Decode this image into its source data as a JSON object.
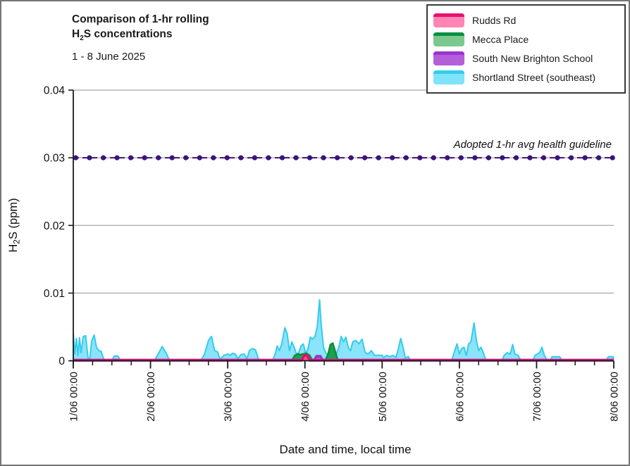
{
  "figure": {
    "title_line1": "Comparison of 1-hr rolling",
    "title_h": "H",
    "title_sub": "2",
    "title_rest": "S concentrations",
    "subtitle": "1 - 8 June 2025"
  },
  "legend": {
    "items": [
      {
        "label": "Rudds Rd",
        "fill": "#FF85B5",
        "line": "#E4126F"
      },
      {
        "label": "Mecca Place",
        "fill": "#7CC98F",
        "line": "#0A9140"
      },
      {
        "label": "South New Brighton School",
        "fill": "#B45FD9",
        "line": "#9B35CE"
      },
      {
        "label": "Shortland Street (southeast)",
        "fill": "#7FE3F9",
        "line": "#33CCEE"
      }
    ]
  },
  "chart_data": {
    "type": "area",
    "title": "Comparison of 1-hr rolling H2S concentrations, 1 - 8 June 2025",
    "xlabel": "Date and time, local time",
    "ylabel_h": "H",
    "ylabel_sub": "2",
    "ylabel_rest": "S (ppm)",
    "ylim": [
      0,
      0.04
    ],
    "xlim_days": [
      0,
      7
    ],
    "grid": "horizontal",
    "legend_position": "top-right",
    "yticks": [
      {
        "value": 0,
        "label": "0"
      },
      {
        "value": 0.01,
        "label": "0.01"
      },
      {
        "value": 0.02,
        "label": "0.02"
      },
      {
        "value": 0.03,
        "label": "0.03"
      },
      {
        "value": 0.04,
        "label": "0.04"
      }
    ],
    "xticks": [
      {
        "day": 0,
        "label": "1/06 00:00"
      },
      {
        "day": 1,
        "label": "2/06 00:00"
      },
      {
        "day": 2,
        "label": "3/06 00:00"
      },
      {
        "day": 3,
        "label": "4/06 00:00"
      },
      {
        "day": 4,
        "label": "5/06 00:00"
      },
      {
        "day": 5,
        "label": "6/06 00:00"
      },
      {
        "day": 6,
        "label": "7/06 00:00"
      },
      {
        "day": 7,
        "label": "8/06 00:00"
      }
    ],
    "minor_tick_interval_days": 0.25,
    "guideline": {
      "value": 0.03,
      "label": "Adopted 1-hr avg health guideline",
      "color": "#3A1578"
    },
    "series": [
      {
        "name": "Rudds Rd",
        "stroke": "#DE0F6F",
        "fill": "#F0519B",
        "width": 3.5,
        "points": [
          [
            0,
            5e-05
          ],
          [
            2.96,
            5e-05
          ],
          [
            2.99,
            0.0008
          ],
          [
            3.03,
            0.0008
          ],
          [
            3.06,
            5e-05
          ],
          [
            7,
            5e-05
          ]
        ]
      },
      {
        "name": "Mecca Place",
        "stroke": "#0E8C3C",
        "fill": "#1CA24E",
        "width": 2.5,
        "points": [
          [
            0,
            5e-05
          ],
          [
            2.83,
            5e-05
          ],
          [
            2.87,
            0.0008
          ],
          [
            2.91,
            0.001
          ],
          [
            2.94,
            0.0009
          ],
          [
            2.98,
            0.001
          ],
          [
            3.02,
            0.0011
          ],
          [
            3.06,
            0.0008
          ],
          [
            3.09,
            0.0002
          ],
          [
            3.12,
            0.0001
          ],
          [
            3.27,
            0.0002
          ],
          [
            3.3,
            0.001
          ],
          [
            3.33,
            0.0024
          ],
          [
            3.36,
            0.0026
          ],
          [
            3.39,
            0.0015
          ],
          [
            3.42,
            0.0003
          ],
          [
            3.45,
            5e-05
          ],
          [
            7,
            5e-05
          ]
        ]
      },
      {
        "name": "South New Brighton School",
        "stroke": "#9632C8",
        "fill": "#A64FD0",
        "width": 3,
        "points": [
          [
            0,
            0.00015
          ],
          [
            3.12,
            0.00015
          ],
          [
            3.15,
            0.0007
          ],
          [
            3.2,
            0.0007
          ],
          [
            3.23,
            0.00015
          ],
          [
            7,
            0.00015
          ]
        ]
      },
      {
        "name": "Shortland Street (southeast)",
        "stroke": "#33CCEE",
        "fill": "#8BE4FA",
        "width": 2,
        "points": [
          [
            0,
            0.004
          ],
          [
            0.02,
            0.001
          ],
          [
            0.04,
            0.0033
          ],
          [
            0.06,
            0.0008
          ],
          [
            0.08,
            0.0034
          ],
          [
            0.1,
            0.0012
          ],
          [
            0.13,
            0.0036
          ],
          [
            0.16,
            0.0037
          ],
          [
            0.19,
            0.0005
          ],
          [
            0.21,
            0
          ],
          [
            0.24,
            0.003
          ],
          [
            0.27,
            0.0038
          ],
          [
            0.3,
            0.002
          ],
          [
            0.33,
            0.0015
          ],
          [
            0.36,
            0.0014
          ],
          [
            0.39,
            0.0004
          ],
          [
            0.41,
            0
          ],
          [
            0.5,
            0
          ],
          [
            0.53,
            0.0007
          ],
          [
            0.58,
            0.0007
          ],
          [
            0.61,
            0
          ],
          [
            1,
            0
          ],
          [
            1.06,
            0.0002
          ],
          [
            1.1,
            0.001
          ],
          [
            1.15,
            0.0021
          ],
          [
            1.2,
            0.0012
          ],
          [
            1.24,
            0.0002
          ],
          [
            1.28,
            0
          ],
          [
            1.65,
            0
          ],
          [
            1.7,
            0.001
          ],
          [
            1.75,
            0.003
          ],
          [
            1.79,
            0.0036
          ],
          [
            1.83,
            0.0015
          ],
          [
            1.87,
            0.0013
          ],
          [
            1.9,
            0.0002
          ],
          [
            1.95,
            0.0008
          ],
          [
            2,
            0.001
          ],
          [
            2.03,
            0.0008
          ],
          [
            2.06,
            0.0011
          ],
          [
            2.1,
            0.001
          ],
          [
            2.13,
            0.0003
          ],
          [
            2.17,
            0.0009
          ],
          [
            2.21,
            0.001
          ],
          [
            2.25,
            0.0003
          ],
          [
            2.28,
            0.0015
          ],
          [
            2.32,
            0.0018
          ],
          [
            2.36,
            0.0016
          ],
          [
            2.4,
            0.0002
          ],
          [
            2.45,
            0
          ],
          [
            2.58,
            0
          ],
          [
            2.62,
            0.0012
          ],
          [
            2.64,
            0.0022
          ],
          [
            2.67,
            0.0015
          ],
          [
            2.7,
            0.0025
          ],
          [
            2.74,
            0.0049
          ],
          [
            2.77,
            0.004
          ],
          [
            2.8,
            0.0015
          ],
          [
            2.83,
            0.0028
          ],
          [
            2.86,
            0.002
          ],
          [
            2.89,
            0.001
          ],
          [
            2.92,
            0.0012
          ],
          [
            2.95,
            0.0022
          ],
          [
            2.98,
            0.0025
          ],
          [
            3.01,
            0.001
          ],
          [
            3.04,
            0.0018
          ],
          [
            3.07,
            0.0035
          ],
          [
            3.1,
            0.0032
          ],
          [
            3.13,
            0.0036
          ],
          [
            3.16,
            0.005
          ],
          [
            3.19,
            0.009
          ],
          [
            3.21,
            0.0055
          ],
          [
            3.24,
            0.002
          ],
          [
            3.27,
            0.0012
          ],
          [
            3.3,
            0.0008
          ],
          [
            3.35,
            0.0005
          ],
          [
            3.4,
            0.0008
          ],
          [
            3.44,
            0.002
          ],
          [
            3.47,
            0.0036
          ],
          [
            3.5,
            0.0028
          ],
          [
            3.53,
            0.0035
          ],
          [
            3.56,
            0.002
          ],
          [
            3.59,
            0.0015
          ],
          [
            3.62,
            0.0028
          ],
          [
            3.66,
            0.003
          ],
          [
            3.7,
            0.0025
          ],
          [
            3.74,
            0.0032
          ],
          [
            3.78,
            0.0012
          ],
          [
            3.82,
            0.001
          ],
          [
            3.86,
            0.0015
          ],
          [
            3.9,
            0.0008
          ],
          [
            3.95,
            0.0008
          ],
          [
            4,
            0.0008
          ],
          [
            4.02,
            0.0005
          ],
          [
            4.06,
            0.0008
          ],
          [
            4.1,
            0.0006
          ],
          [
            4.14,
            0.0008
          ],
          [
            4.18,
            0.0005
          ],
          [
            4.21,
            0.0018
          ],
          [
            4.24,
            0.0033
          ],
          [
            4.27,
            0.002
          ],
          [
            4.3,
            0.0004
          ],
          [
            4.34,
            0.0006
          ],
          [
            4.37,
            0
          ],
          [
            4.9,
            0
          ],
          [
            4.94,
            0.0015
          ],
          [
            4.97,
            0.0025
          ],
          [
            5,
            0.001
          ],
          [
            5.03,
            0.0018
          ],
          [
            5.06,
            0.002
          ],
          [
            5.09,
            0.0008
          ],
          [
            5.12,
            0.0025
          ],
          [
            5.15,
            0.0028
          ],
          [
            5.19,
            0.0056
          ],
          [
            5.22,
            0.003
          ],
          [
            5.25,
            0.0015
          ],
          [
            5.28,
            0.002
          ],
          [
            5.31,
            0.0012
          ],
          [
            5.34,
            0.0002
          ],
          [
            5.4,
            0
          ],
          [
            5.55,
            0
          ],
          [
            5.58,
            0.0008
          ],
          [
            5.62,
            0.0012
          ],
          [
            5.66,
            0.001
          ],
          [
            5.69,
            0.0024
          ],
          [
            5.72,
            0.001
          ],
          [
            5.76,
            0.0008
          ],
          [
            5.79,
            0.0002
          ],
          [
            5.83,
            0
          ],
          [
            5.95,
            0
          ],
          [
            5.98,
            0.0008
          ],
          [
            6.01,
            0.001
          ],
          [
            6.04,
            0.0012
          ],
          [
            6.07,
            0.002
          ],
          [
            6.1,
            0.0008
          ],
          [
            6.13,
            0.0002
          ],
          [
            6.18,
            0
          ],
          [
            6.2,
            0.0006
          ],
          [
            6.3,
            0.0006
          ],
          [
            6.33,
            0
          ],
          [
            6.9,
            0
          ],
          [
            6.93,
            0.0006
          ],
          [
            6.99,
            0.0006
          ],
          [
            7,
            0.0003
          ]
        ]
      }
    ]
  }
}
